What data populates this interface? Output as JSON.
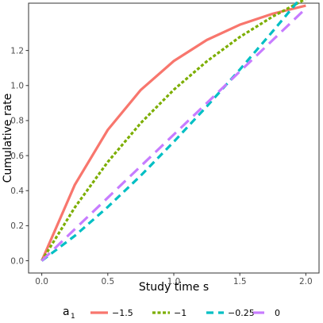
{
  "chart_data": {
    "type": "line",
    "title": "",
    "xlabel": "Study time s",
    "ylabel": "Cumulative rate",
    "xlim": [
      -0.1,
      2.1
    ],
    "ylim": [
      -0.07,
      1.47
    ],
    "x_ticks": [
      0.0,
      0.5,
      1.0,
      1.5,
      2.0
    ],
    "x_tick_labels": [
      "0.0",
      "0.5",
      "1.0",
      "1.5",
      "2.0"
    ],
    "y_ticks": [
      0.0,
      0.2,
      0.4,
      0.6,
      0.8,
      1.0,
      1.2
    ],
    "y_tick_labels": [
      "0.0",
      "0.2",
      "0.4",
      "0.6",
      "0.8",
      "1.0",
      "1.2"
    ],
    "grid": false,
    "legend": {
      "position": "bottom",
      "title_main": "a",
      "title_sub": "1"
    },
    "x": [
      0.0,
      0.25,
      0.5,
      0.75,
      1.0,
      1.25,
      1.5,
      1.75,
      2.0
    ],
    "series": [
      {
        "name": "−1.5",
        "color": "#F8766D",
        "dash": "solid",
        "values": [
          0.0,
          0.433,
          0.747,
          0.975,
          1.14,
          1.26,
          1.347,
          1.41,
          1.456
        ]
      },
      {
        "name": "−1",
        "color": "#7CAE00",
        "dash": "dotted",
        "values": [
          0.0,
          0.304,
          0.564,
          0.786,
          0.976,
          1.138,
          1.277,
          1.394,
          1.495
        ]
      },
      {
        "name": "−0.25",
        "color": "#00BFC4",
        "dash": "dashed",
        "values": [
          0.0,
          0.142,
          0.307,
          0.486,
          0.679,
          0.881,
          1.091,
          1.31,
          1.534
        ]
      },
      {
        "name": "0",
        "color": "#C77CFF",
        "dash": "longdash",
        "values": [
          0.0,
          0.18,
          0.36,
          0.54,
          0.72,
          0.9,
          1.08,
          1.26,
          1.44
        ]
      }
    ]
  }
}
